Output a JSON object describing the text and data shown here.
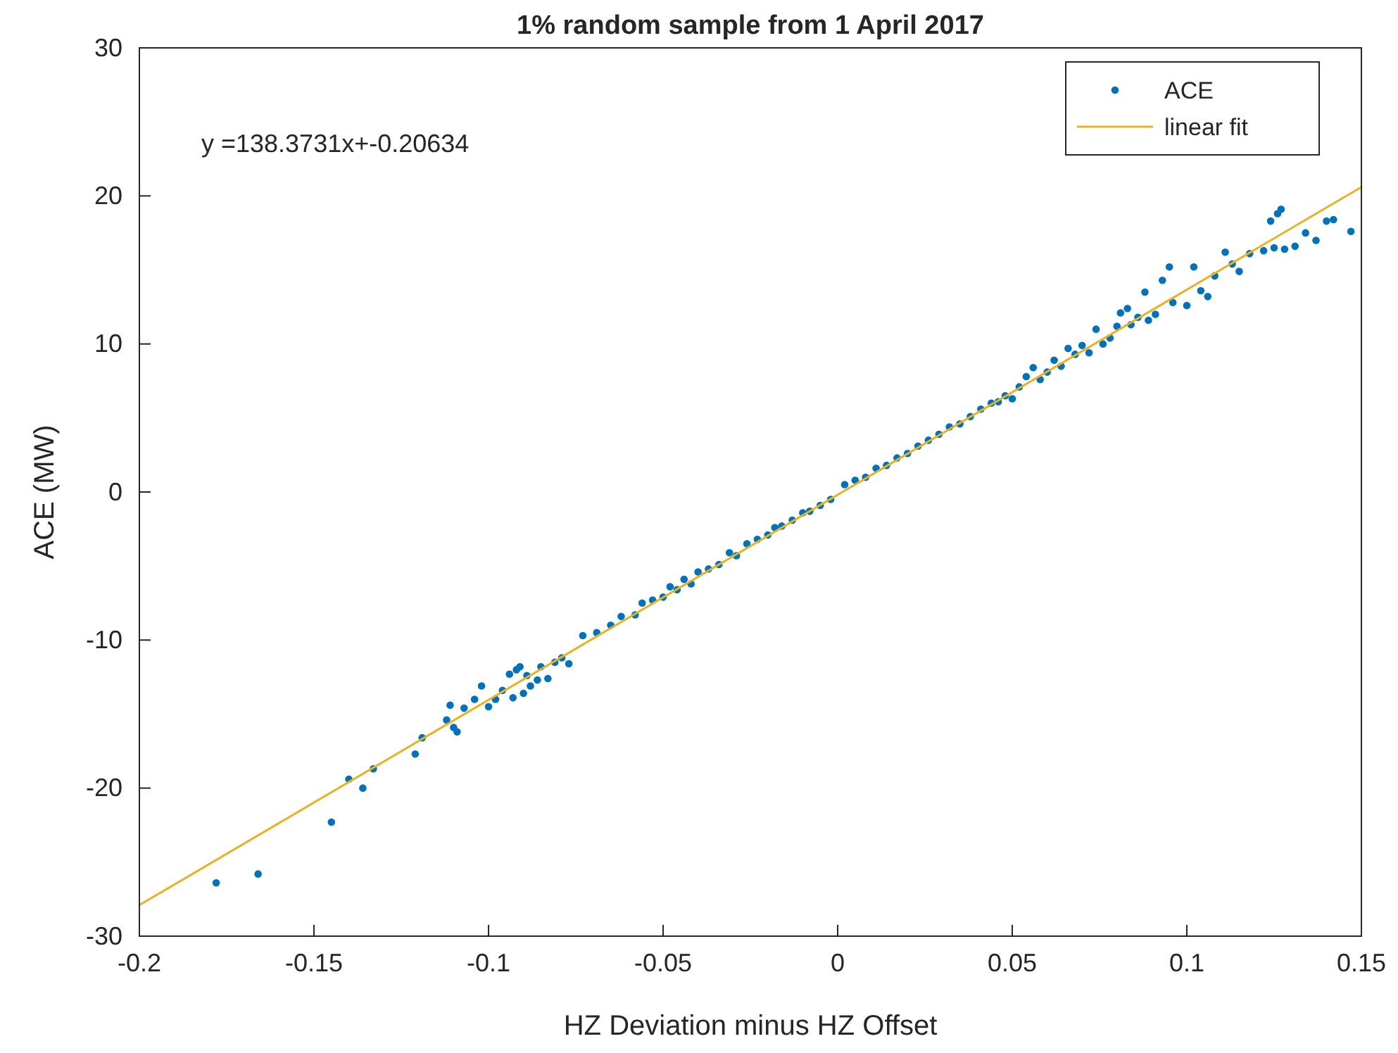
{
  "chart_data": {
    "type": "scatter",
    "title": "1% random sample from 1 April 2017",
    "xlabel": "HZ Deviation minus HZ Offset",
    "ylabel": "ACE (MW)",
    "annotations": [
      "y =138.3731x+-0.20634"
    ],
    "xlim": [
      -0.2,
      0.15
    ],
    "xticks": [
      -0.2,
      -0.15,
      -0.1,
      -0.05,
      0,
      0.05,
      0.1,
      0.15
    ],
    "ylim": [
      -30,
      30
    ],
    "yticks": [
      -30,
      -20,
      -10,
      0,
      10,
      20,
      30
    ],
    "grid": false,
    "legend": "top right",
    "series": [
      {
        "name": "ACE",
        "marker": "circle",
        "color": "#0072bd",
        "x": [
          -0.178,
          -0.166,
          -0.145,
          -0.14,
          -0.136,
          -0.133,
          -0.121,
          -0.119,
          -0.112,
          -0.111,
          -0.11,
          -0.109,
          -0.107,
          -0.104,
          -0.102,
          -0.1,
          -0.098,
          -0.096,
          -0.094,
          -0.093,
          -0.092,
          -0.091,
          -0.09,
          -0.089,
          -0.088,
          -0.086,
          -0.085,
          -0.083,
          -0.081,
          -0.079,
          -0.077,
          -0.073,
          -0.069,
          -0.065,
          -0.062,
          -0.058,
          -0.056,
          -0.053,
          -0.05,
          -0.048,
          -0.046,
          -0.044,
          -0.042,
          -0.04,
          -0.037,
          -0.034,
          -0.031,
          -0.029,
          -0.026,
          -0.023,
          -0.02,
          -0.018,
          -0.016,
          -0.013,
          -0.01,
          -0.008,
          -0.005,
          -0.002,
          0.002,
          0.005,
          0.008,
          0.011,
          0.014,
          0.017,
          0.02,
          0.023,
          0.026,
          0.029,
          0.032,
          0.035,
          0.038,
          0.041,
          0.044,
          0.046,
          0.048,
          0.05,
          0.052,
          0.054,
          0.056,
          0.058,
          0.06,
          0.062,
          0.064,
          0.066,
          0.068,
          0.07,
          0.072,
          0.074,
          0.076,
          0.078,
          0.08,
          0.081,
          0.083,
          0.084,
          0.086,
          0.088,
          0.089,
          0.091,
          0.093,
          0.095,
          0.096,
          0.1,
          0.102,
          0.104,
          0.106,
          0.108,
          0.111,
          0.113,
          0.115,
          0.118,
          0.122,
          0.124,
          0.126,
          0.127,
          0.125,
          0.128,
          0.131,
          0.134,
          0.137,
          0.14,
          0.142,
          0.147
        ],
        "values": [
          -26.4,
          -25.8,
          -22.3,
          -19.4,
          -20.0,
          -18.7,
          -17.7,
          -16.6,
          -15.4,
          -14.4,
          -15.9,
          -16.2,
          -14.6,
          -14.0,
          -13.1,
          -14.5,
          -14.0,
          -13.4,
          -12.3,
          -13.9,
          -12.0,
          -11.8,
          -13.6,
          -12.4,
          -13.1,
          -12.7,
          -11.8,
          -12.6,
          -11.5,
          -11.2,
          -11.6,
          -9.7,
          -9.5,
          -9.0,
          -8.4,
          -8.3,
          -7.5,
          -7.3,
          -7.1,
          -6.4,
          -6.6,
          -5.9,
          -6.2,
          -5.4,
          -5.2,
          -4.9,
          -4.1,
          -4.3,
          -3.5,
          -3.2,
          -2.9,
          -2.4,
          -2.3,
          -1.9,
          -1.4,
          -1.3,
          -0.9,
          -0.5,
          0.5,
          0.8,
          1.0,
          1.6,
          1.8,
          2.3,
          2.6,
          3.1,
          3.5,
          3.9,
          4.4,
          4.6,
          5.1,
          5.6,
          6.0,
          6.1,
          6.5,
          6.3,
          7.1,
          7.8,
          8.4,
          7.6,
          8.1,
          8.9,
          8.5,
          9.7,
          9.3,
          9.9,
          9.4,
          11.0,
          10.0,
          10.4,
          11.2,
          12.1,
          12.4,
          11.3,
          11.8,
          13.5,
          11.6,
          12.0,
          14.3,
          15.2,
          12.8,
          12.6,
          15.2,
          13.6,
          13.2,
          14.6,
          16.2,
          15.4,
          14.9,
          16.1,
          16.3,
          18.3,
          18.8,
          19.1,
          16.5,
          16.4,
          16.6,
          17.5,
          17.0,
          18.3,
          18.4,
          17.6
        ]
      },
      {
        "name": "linear fit",
        "type": "line",
        "marker": "none",
        "line_style": "solid",
        "color": "#edb120",
        "x": [
          -0.2,
          0.15
        ],
        "values": [
          -27.9,
          20.6
        ]
      }
    ]
  }
}
